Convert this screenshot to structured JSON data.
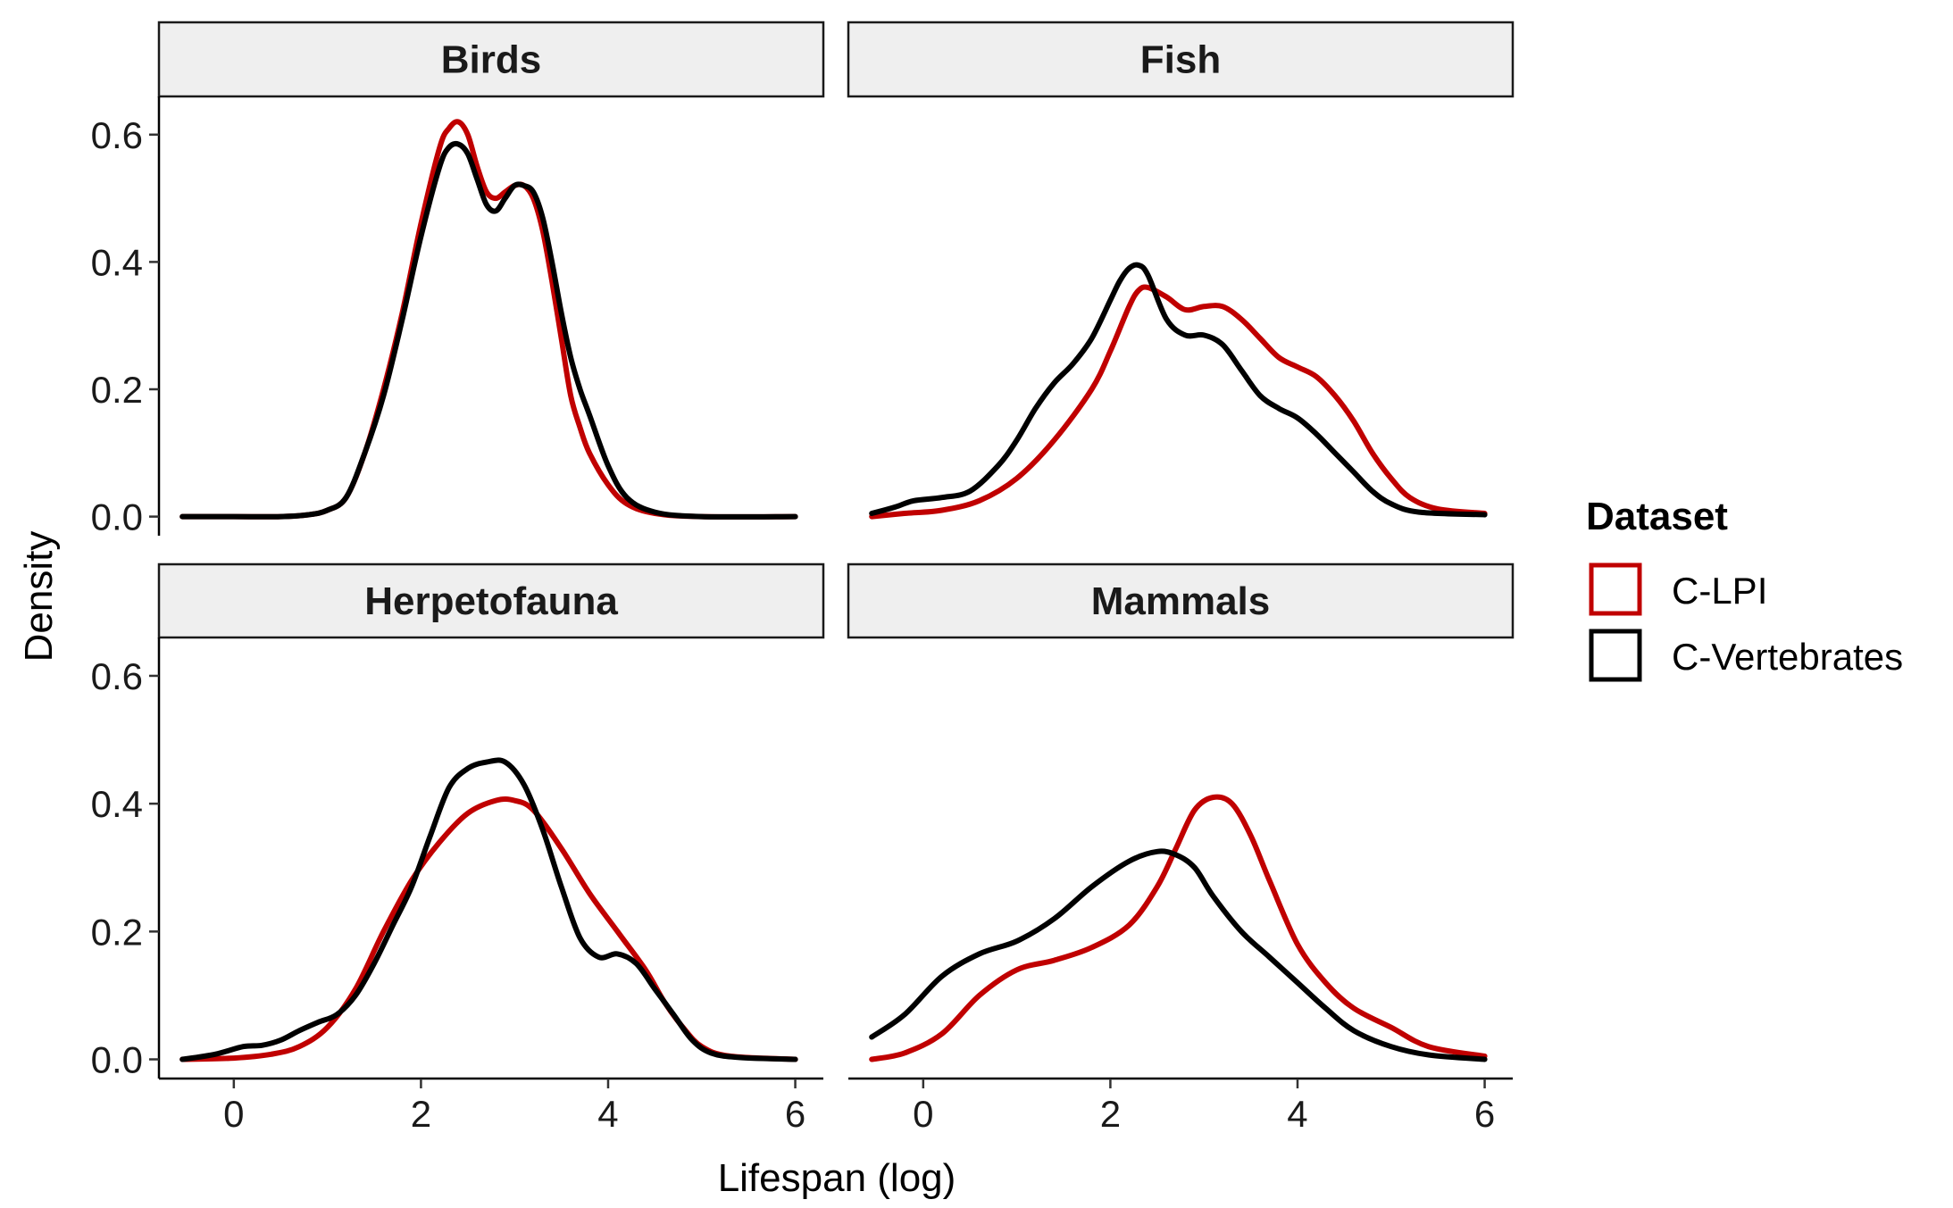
{
  "chart_data": {
    "type": "line",
    "chart_kind": "faceted density plot",
    "xlabel": "Lifespan (log)",
    "ylabel": "Density",
    "xlim": [
      -0.8,
      6.3
    ],
    "ylim": [
      -0.03,
      0.66
    ],
    "x_ticks": [
      0,
      2,
      4,
      6
    ],
    "y_ticks": [
      0.0,
      0.2,
      0.4,
      0.6
    ],
    "x_tick_labels": [
      "0",
      "2",
      "4",
      "6"
    ],
    "y_tick_labels": [
      "0.0",
      "0.2",
      "0.4",
      "0.6"
    ],
    "grid": false,
    "legend": {
      "title": "Dataset",
      "placement": "right",
      "entries": [
        {
          "label": "C-LPI",
          "color": "#c00000"
        },
        {
          "label": "C-Vertebrates",
          "color": "#000000"
        }
      ]
    },
    "panels": [
      {
        "title": "Birds",
        "series": [
          {
            "name": "C-LPI",
            "color": "#c00000",
            "x": [
              -0.55,
              0.0,
              0.5,
              0.8,
              1.0,
              1.2,
              1.4,
              1.6,
              1.8,
              2.0,
              2.2,
              2.3,
              2.4,
              2.5,
              2.6,
              2.7,
              2.8,
              2.9,
              3.0,
              3.1,
              3.2,
              3.3,
              3.4,
              3.5,
              3.6,
              3.7,
              3.8,
              4.0,
              4.2,
              4.5,
              5.0,
              6.0
            ],
            "y": [
              0.0,
              0.0,
              0.0,
              0.003,
              0.01,
              0.03,
              0.1,
              0.2,
              0.32,
              0.46,
              0.58,
              0.61,
              0.62,
              0.6,
              0.55,
              0.51,
              0.5,
              0.51,
              0.52,
              0.52,
              0.5,
              0.45,
              0.37,
              0.28,
              0.19,
              0.14,
              0.1,
              0.05,
              0.02,
              0.005,
              0.0,
              0.0
            ]
          },
          {
            "name": "C-Vertebrates",
            "color": "#000000",
            "x": [
              -0.55,
              0.0,
              0.5,
              0.8,
              1.0,
              1.2,
              1.4,
              1.6,
              1.8,
              2.0,
              2.2,
              2.3,
              2.4,
              2.5,
              2.6,
              2.7,
              2.8,
              2.9,
              3.0,
              3.1,
              3.2,
              3.3,
              3.4,
              3.5,
              3.6,
              3.7,
              3.8,
              4.0,
              4.2,
              4.5,
              5.0,
              6.0
            ],
            "y": [
              0.0,
              0.0,
              0.0,
              0.003,
              0.01,
              0.03,
              0.1,
              0.19,
              0.31,
              0.44,
              0.55,
              0.58,
              0.585,
              0.57,
              0.53,
              0.49,
              0.48,
              0.5,
              0.52,
              0.52,
              0.51,
              0.47,
              0.4,
              0.32,
              0.25,
              0.2,
              0.16,
              0.08,
              0.03,
              0.007,
              0.0,
              0.0
            ]
          }
        ]
      },
      {
        "title": "Fish",
        "series": [
          {
            "name": "C-LPI",
            "color": "#c00000",
            "x": [
              -0.55,
              -0.2,
              0.2,
              0.6,
              1.0,
              1.4,
              1.8,
              2.0,
              2.2,
              2.3,
              2.4,
              2.6,
              2.8,
              3.0,
              3.2,
              3.4,
              3.6,
              3.8,
              4.0,
              4.2,
              4.4,
              4.6,
              4.8,
              5.0,
              5.2,
              5.5,
              6.0
            ],
            "y": [
              0.0,
              0.005,
              0.01,
              0.025,
              0.06,
              0.12,
              0.2,
              0.26,
              0.33,
              0.355,
              0.36,
              0.345,
              0.325,
              0.33,
              0.33,
              0.31,
              0.28,
              0.25,
              0.235,
              0.22,
              0.19,
              0.15,
              0.1,
              0.06,
              0.03,
              0.012,
              0.005
            ]
          },
          {
            "name": "C-Vertebrates",
            "color": "#000000",
            "x": [
              -0.55,
              -0.3,
              -0.1,
              0.2,
              0.5,
              0.8,
              1.0,
              1.2,
              1.4,
              1.6,
              1.8,
              2.0,
              2.1,
              2.2,
              2.3,
              2.4,
              2.6,
              2.8,
              3.0,
              3.2,
              3.4,
              3.6,
              3.8,
              4.0,
              4.2,
              4.4,
              4.6,
              4.8,
              5.0,
              5.3,
              6.0
            ],
            "y": [
              0.005,
              0.015,
              0.025,
              0.03,
              0.04,
              0.08,
              0.12,
              0.17,
              0.21,
              0.24,
              0.28,
              0.34,
              0.37,
              0.39,
              0.395,
              0.38,
              0.31,
              0.285,
              0.285,
              0.27,
              0.23,
              0.19,
              0.17,
              0.155,
              0.13,
              0.1,
              0.07,
              0.04,
              0.02,
              0.007,
              0.003
            ]
          }
        ]
      },
      {
        "title": "Herpetofauna",
        "series": [
          {
            "name": "C-LPI",
            "color": "#c00000",
            "x": [
              -0.55,
              0.0,
              0.4,
              0.7,
              1.0,
              1.3,
              1.6,
              1.9,
              2.2,
              2.5,
              2.8,
              3.0,
              3.2,
              3.5,
              3.8,
              4.1,
              4.4,
              4.6,
              4.8,
              5.0,
              5.3,
              6.0
            ],
            "y": [
              0.0,
              0.002,
              0.008,
              0.02,
              0.05,
              0.11,
              0.2,
              0.28,
              0.34,
              0.385,
              0.405,
              0.405,
              0.39,
              0.33,
              0.26,
              0.2,
              0.14,
              0.09,
              0.05,
              0.02,
              0.005,
              0.0
            ]
          },
          {
            "name": "C-Vertebrates",
            "color": "#000000",
            "x": [
              -0.55,
              -0.2,
              0.1,
              0.3,
              0.5,
              0.7,
              0.9,
              1.1,
              1.3,
              1.5,
              1.7,
              1.9,
              2.1,
              2.3,
              2.5,
              2.7,
              2.9,
              3.1,
              3.3,
              3.5,
              3.7,
              3.9,
              4.1,
              4.3,
              4.5,
              4.7,
              4.9,
              5.1,
              5.4,
              6.0
            ],
            "y": [
              0.0,
              0.008,
              0.02,
              0.022,
              0.03,
              0.045,
              0.058,
              0.07,
              0.1,
              0.15,
              0.21,
              0.27,
              0.35,
              0.425,
              0.455,
              0.465,
              0.465,
              0.43,
              0.36,
              0.27,
              0.19,
              0.16,
              0.165,
              0.15,
              0.11,
              0.07,
              0.03,
              0.01,
              0.003,
              0.0
            ]
          }
        ]
      },
      {
        "title": "Mammals",
        "series": [
          {
            "name": "C-LPI",
            "color": "#c00000",
            "x": [
              -0.55,
              -0.2,
              0.2,
              0.6,
              1.0,
              1.4,
              1.8,
              2.2,
              2.5,
              2.7,
              2.9,
              3.1,
              3.3,
              3.5,
              3.7,
              4.0,
              4.3,
              4.6,
              5.0,
              5.4,
              6.0
            ],
            "y": [
              0.0,
              0.01,
              0.04,
              0.1,
              0.14,
              0.155,
              0.175,
              0.21,
              0.27,
              0.33,
              0.39,
              0.41,
              0.4,
              0.35,
              0.28,
              0.18,
              0.12,
              0.08,
              0.05,
              0.02,
              0.005
            ]
          },
          {
            "name": "C-Vertebrates",
            "color": "#000000",
            "x": [
              -0.55,
              -0.2,
              0.2,
              0.6,
              1.0,
              1.4,
              1.8,
              2.2,
              2.5,
              2.7,
              2.9,
              3.1,
              3.4,
              3.7,
              4.0,
              4.3,
              4.6,
              5.0,
              5.4,
              6.0
            ],
            "y": [
              0.035,
              0.07,
              0.13,
              0.165,
              0.185,
              0.22,
              0.27,
              0.31,
              0.325,
              0.32,
              0.3,
              0.255,
              0.2,
              0.16,
              0.12,
              0.08,
              0.045,
              0.02,
              0.007,
              0.0
            ]
          }
        ]
      }
    ]
  }
}
